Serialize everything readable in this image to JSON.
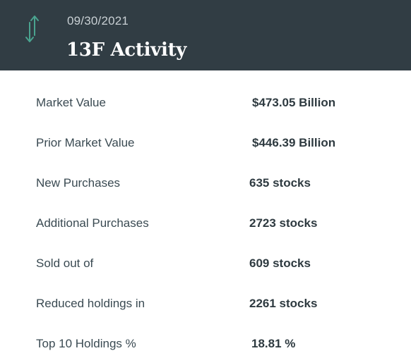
{
  "header": {
    "date": "09/30/2021",
    "title": "13F Activity",
    "icon": "vertical-arrows-icon",
    "background_color": "#313d44",
    "icon_color": "#4aa38f"
  },
  "rows": [
    {
      "label": "Market Value",
      "value": "$473.05 Billion"
    },
    {
      "label": "Prior Market Value",
      "value": "$446.39 Billion"
    },
    {
      "label": "New Purchases",
      "value": "635 stocks"
    },
    {
      "label": "Additional Purchases",
      "value": "2723 stocks"
    },
    {
      "label": "Sold out of",
      "value": "609 stocks"
    },
    {
      "label": "Reduced holdings in",
      "value": "2261 stocks"
    },
    {
      "label": "Top 10 Holdings %",
      "value": "18.81 %"
    }
  ]
}
